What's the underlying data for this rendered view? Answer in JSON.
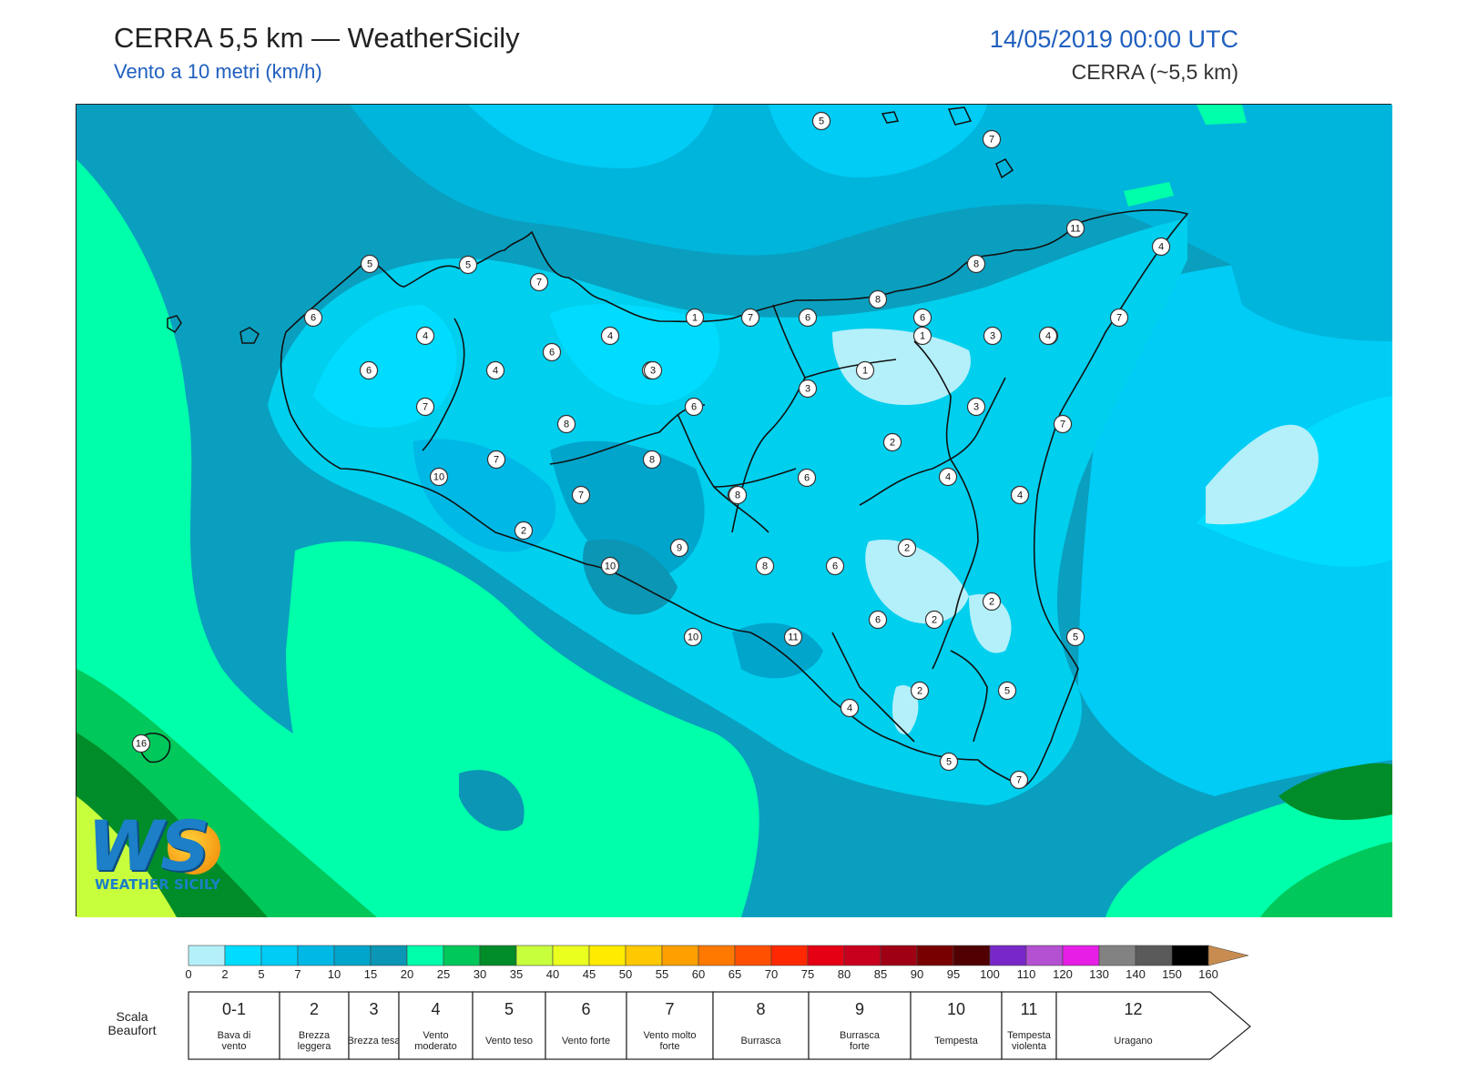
{
  "header": {
    "title": "CERRA 5,5 km — WeatherSicily",
    "subtitle": "Vento a 10 metri (km/h)",
    "datetime": "14/05/2019 00:00 UTC",
    "model": "CERRA (~5,5 km)"
  },
  "logo": {
    "mark": "WS",
    "name": "WEATHER SICILY"
  },
  "colors": {
    "sea_dark": "#0a9fbf",
    "sea_mid": "#00b5dc",
    "land_mid": "#00cfee",
    "light": "#b4f0fa",
    "pale": "#00dffa",
    "green_teal": "#00ffaa",
    "green": "#00c85a",
    "green_dark": "#008c28",
    "yellow_green": "#c8ff3c"
  },
  "colorbar": {
    "ticks": [
      "0",
      "2",
      "5",
      "7",
      "10",
      "15",
      "20",
      "25",
      "30",
      "35",
      "40",
      "45",
      "50",
      "55",
      "60",
      "65",
      "70",
      "75",
      "80",
      "85",
      "90",
      "95",
      "100",
      "110",
      "120",
      "130",
      "140",
      "150",
      "160"
    ],
    "colors": [
      "#b4f0fa",
      "#00dcff",
      "#00ccf5",
      "#00b8e6",
      "#00a5cc",
      "#0a96b4",
      "#00ffaa",
      "#00c85a",
      "#008c28",
      "#c8ff3c",
      "#ebff1e",
      "#ffeb00",
      "#ffc800",
      "#ffa000",
      "#ff7800",
      "#ff5000",
      "#ff2800",
      "#e60014",
      "#c8001e",
      "#a00014",
      "#780000",
      "#500000",
      "#7828c8",
      "#b450d2",
      "#e61ee6",
      "#828282",
      "#5a5a5a",
      "#000000",
      "#8c4b28",
      "#c88c50"
    ]
  },
  "beaufort": {
    "label": "Scala Beaufort",
    "classes": [
      {
        "force": "0-1",
        "name": "Bava di vento"
      },
      {
        "force": "2",
        "name": "Brezza leggera"
      },
      {
        "force": "3",
        "name": "Brezza tesa"
      },
      {
        "force": "4",
        "name": "Vento moderato"
      },
      {
        "force": "5",
        "name": "Vento teso"
      },
      {
        "force": "6",
        "name": "Vento forte"
      },
      {
        "force": "7",
        "name": "Vento molto forte"
      },
      {
        "force": "8",
        "name": "Burrasca"
      },
      {
        "force": "9",
        "name": "Burrasca forte"
      },
      {
        "force": "10",
        "name": "Tempesta"
      },
      {
        "force": "11",
        "name": "Tempesta violenta"
      },
      {
        "force": "12",
        "name": "Uragano"
      }
    ]
  },
  "stations": [
    {
      "value": "5"
    },
    {
      "value": "7"
    },
    {
      "value": "11"
    },
    {
      "value": "4"
    },
    {
      "value": "8"
    },
    {
      "value": "5"
    },
    {
      "value": "5"
    },
    {
      "value": "7"
    },
    {
      "value": "6"
    },
    {
      "value": "4"
    },
    {
      "value": "4"
    },
    {
      "value": "1"
    },
    {
      "value": "7"
    },
    {
      "value": "6"
    },
    {
      "value": "8"
    },
    {
      "value": "7"
    },
    {
      "value": "8"
    },
    {
      "value": "6"
    },
    {
      "value": "6"
    },
    {
      "value": "3"
    },
    {
      "value": "1"
    },
    {
      "value": "3"
    },
    {
      "value": "4"
    },
    {
      "value": "7"
    },
    {
      "value": "6"
    },
    {
      "value": "4"
    },
    {
      "value": "7"
    },
    {
      "value": "3"
    },
    {
      "value": "6"
    },
    {
      "value": "3"
    },
    {
      "value": "1"
    },
    {
      "value": "3"
    },
    {
      "value": "6"
    },
    {
      "value": "8"
    },
    {
      "value": "7"
    },
    {
      "value": "2"
    },
    {
      "value": "7"
    },
    {
      "value": "8"
    },
    {
      "value": "10"
    },
    {
      "value": "7"
    },
    {
      "value": "6"
    },
    {
      "value": "4"
    },
    {
      "value": "4"
    },
    {
      "value": "8"
    },
    {
      "value": "2"
    },
    {
      "value": "9"
    },
    {
      "value": "10"
    },
    {
      "value": "8"
    },
    {
      "value": "6"
    },
    {
      "value": "2"
    },
    {
      "value": "2"
    },
    {
      "value": "6"
    },
    {
      "value": "2"
    },
    {
      "value": "5"
    },
    {
      "value": "10"
    },
    {
      "value": "11"
    },
    {
      "value": "2"
    },
    {
      "value": "5"
    },
    {
      "value": "4"
    },
    {
      "value": "5"
    },
    {
      "value": "7"
    },
    {
      "value": "16"
    }
  ]
}
